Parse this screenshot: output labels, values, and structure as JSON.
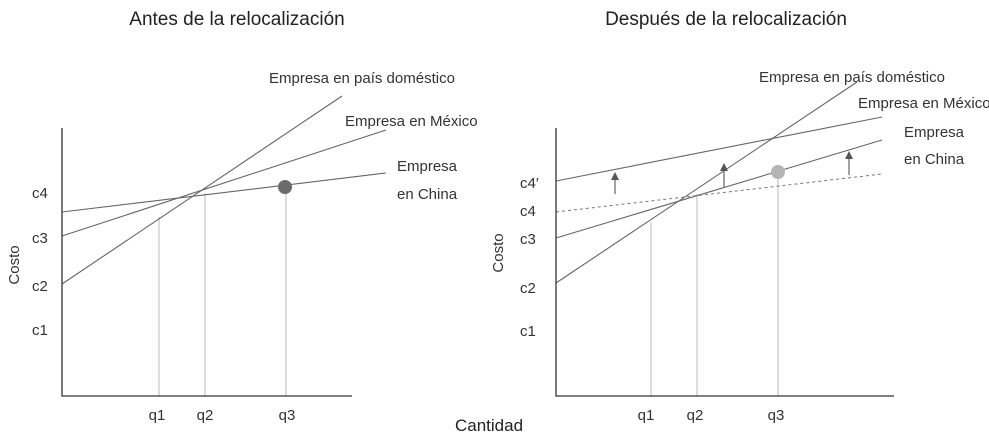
{
  "panels": {
    "left": {
      "title": "Antes de la relocalización",
      "ylabel": "Costo",
      "y_ticks": [
        "c4",
        "c3",
        "c2",
        "c1"
      ],
      "x_ticks": [
        "q1",
        "q2",
        "q3"
      ],
      "lines": {
        "domestic": "Empresa en país doméstico",
        "mexico": "Empresa en México",
        "china_1": "Empresa",
        "china_2": "en China"
      }
    },
    "right": {
      "title": "Después de la relocalización",
      "ylabel": "Costo",
      "y_ticks": [
        "c4′",
        "c4",
        "c3",
        "c2",
        "c1"
      ],
      "x_ticks": [
        "q1",
        "q2",
        "q3"
      ],
      "lines": {
        "domestic": "Empresa en país doméstico",
        "mexico": "Empresa en México",
        "china_1": "Empresa",
        "china_2": "en China"
      }
    }
  },
  "xlabel": "Cantidad",
  "colors": {
    "left_marker": "#6b6b6b",
    "right_marker": "#b5b5b5"
  }
}
